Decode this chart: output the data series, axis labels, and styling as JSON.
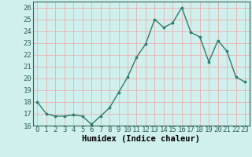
{
  "x": [
    0,
    1,
    2,
    3,
    4,
    5,
    6,
    7,
    8,
    9,
    10,
    11,
    12,
    13,
    14,
    15,
    16,
    17,
    18,
    19,
    20,
    21,
    22,
    23
  ],
  "y": [
    18,
    17,
    16.8,
    16.8,
    16.9,
    16.8,
    16.1,
    16.8,
    17.5,
    18.8,
    20.1,
    21.8,
    22.9,
    25.0,
    24.3,
    24.7,
    26.0,
    23.9,
    23.5,
    21.4,
    23.2,
    22.3,
    20.1,
    19.7
  ],
  "line_color": "#2e7d6e",
  "marker_color": "#2e7d6e",
  "background_color": "#cff0ec",
  "grid_color_major": "#e8b8b8",
  "grid_color_minor": "#e8b8b8",
  "xlabel": "Humidex (Indice chaleur)",
  "xlim": [
    -0.5,
    23.5
  ],
  "ylim": [
    16,
    26.5
  ],
  "yticks": [
    16,
    17,
    18,
    19,
    20,
    21,
    22,
    23,
    24,
    25,
    26
  ],
  "xticks": [
    0,
    1,
    2,
    3,
    4,
    5,
    6,
    7,
    8,
    9,
    10,
    11,
    12,
    13,
    14,
    15,
    16,
    17,
    18,
    19,
    20,
    21,
    22,
    23
  ],
  "xlabel_fontsize": 7.5,
  "tick_fontsize": 6.5,
  "line_width": 1.0,
  "marker_size": 2.2
}
